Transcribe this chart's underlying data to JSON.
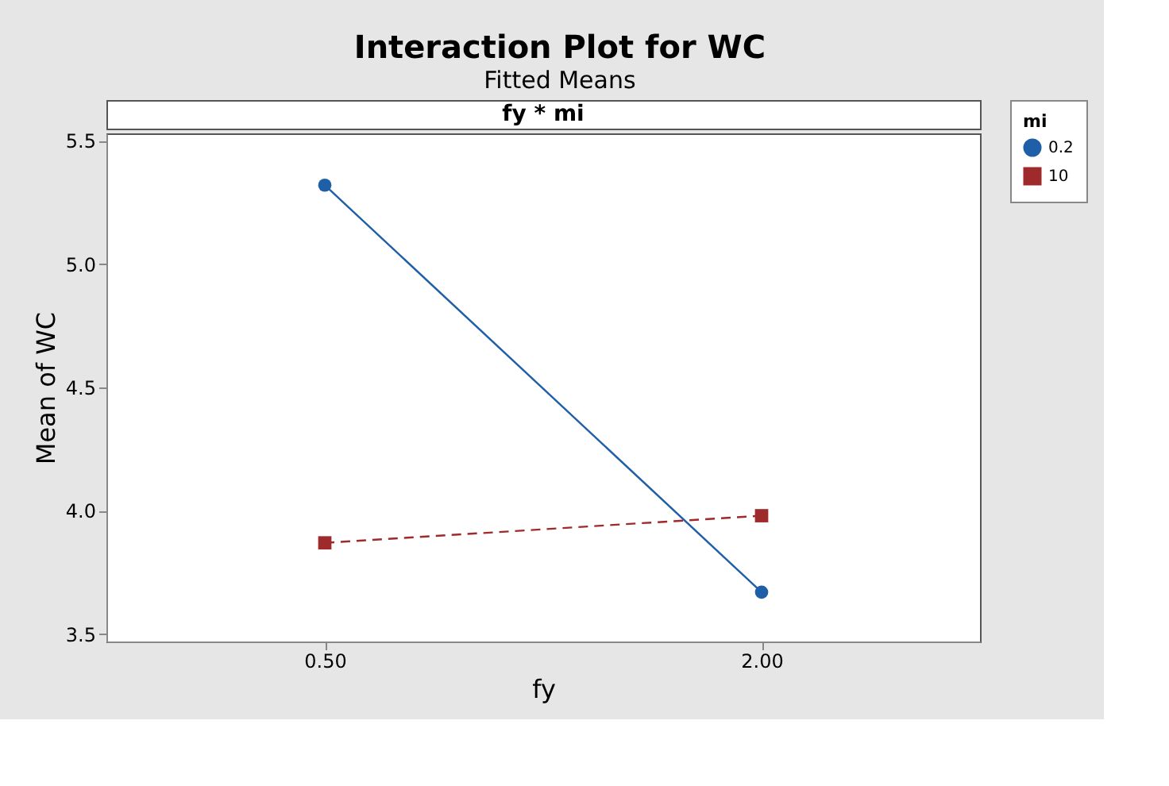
{
  "chart_data": {
    "type": "line",
    "title": "Interaction Plot for WC",
    "subtitle": "Fitted Means",
    "xlabel": "fy",
    "ylabel": "Mean of WC",
    "legend_title": "mi",
    "annotations": [
      "fy * mi"
    ],
    "categories": [
      "0.50",
      "2.00"
    ],
    "series": [
      {
        "name": "0.2",
        "color": "#1f5fa8",
        "values": [
          5.32,
          3.67
        ],
        "marker": "circle",
        "line_style": "solid"
      },
      {
        "name": "10",
        "color": "#9e2a2b",
        "values": [
          3.87,
          3.98
        ],
        "marker": "square",
        "line_style": "dashed"
      }
    ],
    "ylim": [
      3.47,
      5.53
    ],
    "yticks": [
      3.5,
      {
        "value": 4,
        "label": "4.0"
      },
      4.5,
      {
        "value": 5,
        "label": "5.0"
      },
      5.5
    ],
    "grid": false,
    "legend": "top right"
  }
}
